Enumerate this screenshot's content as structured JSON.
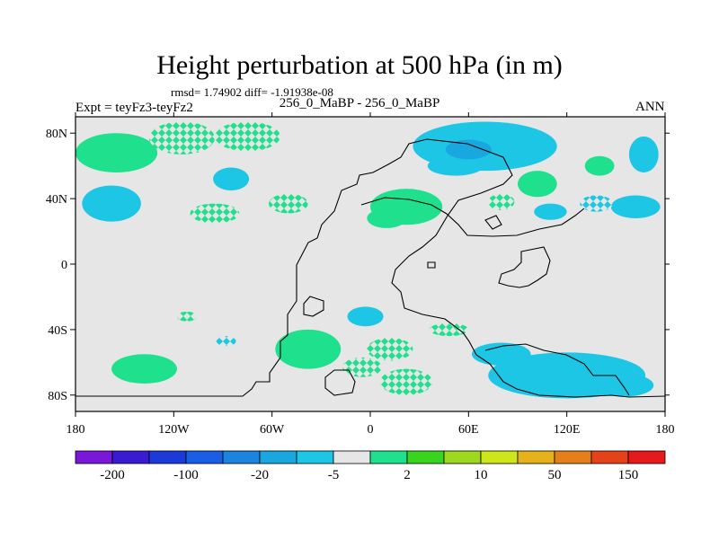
{
  "chart_data": {
    "type": "heatmap",
    "title": "Height perturbation at 500 hPa (in m)",
    "stats_text": "rmsd= 1.74902 diff= -1.91938e-08",
    "left_label": "Expt = teyFz3-teyFz2",
    "center_label": "256_0_MaBP - 256_0_MaBP",
    "right_label": "ANN",
    "x_axis": {
      "range": [
        -180,
        180
      ],
      "ticks": [
        -180,
        -120,
        -60,
        0,
        60,
        120,
        180
      ],
      "tick_labels": [
        "180",
        "120W",
        "60W",
        "0",
        "60E",
        "120E",
        "180"
      ]
    },
    "y_axis": {
      "range": [
        -90,
        90
      ],
      "ticks": [
        80,
        40,
        0,
        -40,
        -80
      ],
      "tick_labels": [
        "80N",
        "40N",
        "0",
        "40S",
        "80S"
      ]
    },
    "colorbar": {
      "colors": [
        "#7a17d9",
        "#3b1ad4",
        "#1c3ad9",
        "#1a5ee6",
        "#1a84e0",
        "#18a7df",
        "#1ec6e5",
        "#e6e6e6",
        "#1fe08c",
        "#38d41e",
        "#9ed91f",
        "#cce619",
        "#e6b21a",
        "#e67f1a",
        "#e6421a",
        "#e61a1a"
      ],
      "labels": [
        "-200",
        "-100",
        "-20",
        "-5",
        "2",
        "10",
        "50",
        "150"
      ]
    },
    "regions": [
      {
        "cls": "pos",
        "lon": -155,
        "lat": 68,
        "rx": 25,
        "ry": 12
      },
      {
        "cls": "pos",
        "lon": -150,
        "lat": 67,
        "rx": 17,
        "ry": 7
      },
      {
        "cls": "pos-hatch",
        "lon": -115,
        "lat": 77,
        "rx": 20,
        "ry": 10
      },
      {
        "cls": "pos-hatch",
        "lon": -75,
        "lat": 78,
        "rx": 20,
        "ry": 9
      },
      {
        "cls": "neg",
        "lon": -158,
        "lat": 37,
        "rx": 18,
        "ry": 11
      },
      {
        "cls": "neg",
        "lon": -85,
        "lat": 52,
        "rx": 11,
        "ry": 7
      },
      {
        "cls": "pos-hatch",
        "lon": -95,
        "lat": 31,
        "rx": 15,
        "ry": 6
      },
      {
        "cls": "pos-hatch",
        "lon": -50,
        "lat": 37,
        "rx": 12,
        "ry": 6
      },
      {
        "cls": "neg",
        "lon": 70,
        "lat": 72,
        "rx": 44,
        "ry": 15
      },
      {
        "cls": "neg",
        "lon": 52,
        "lat": 60,
        "rx": 17,
        "ry": 6
      },
      {
        "cls": "neg-dark",
        "lon": 60,
        "lat": 70,
        "rx": 14,
        "ry": 6
      },
      {
        "cls": "neg",
        "lon": 167,
        "lat": 67,
        "rx": 9,
        "ry": 11
      },
      {
        "cls": "pos",
        "lon": 140,
        "lat": 60,
        "rx": 9,
        "ry": 6
      },
      {
        "cls": "pos",
        "lon": 102,
        "lat": 49,
        "rx": 12,
        "ry": 8
      },
      {
        "cls": "pos",
        "lon": 22,
        "lat": 35,
        "rx": 22,
        "ry": 11
      },
      {
        "cls": "pos",
        "lon": 10,
        "lat": 28,
        "rx": 12,
        "ry": 6
      },
      {
        "cls": "neg",
        "lon": 110,
        "lat": 32,
        "rx": 10,
        "ry": 5
      },
      {
        "cls": "neg",
        "lon": 162,
        "lat": 35,
        "rx": 15,
        "ry": 7
      },
      {
        "cls": "neg-hatch",
        "lon": 138,
        "lat": 37,
        "rx": 10,
        "ry": 5
      },
      {
        "cls": "pos-hatch",
        "lon": 80,
        "lat": 38,
        "rx": 8,
        "ry": 5
      },
      {
        "cls": "neg",
        "lon": -3,
        "lat": -32,
        "rx": 11,
        "ry": 6
      },
      {
        "cls": "pos-hatch",
        "lon": -112,
        "lat": -32,
        "rx": 6,
        "ry": 3
      },
      {
        "cls": "neg-hatch",
        "lon": -88,
        "lat": -47,
        "rx": 6,
        "ry": 3
      },
      {
        "cls": "pos",
        "lon": -38,
        "lat": -52,
        "rx": 20,
        "ry": 12
      },
      {
        "cls": "pos-hatch",
        "lon": 12,
        "lat": -52,
        "rx": 14,
        "ry": 7
      },
      {
        "cls": "pos",
        "lon": -138,
        "lat": -64,
        "rx": 20,
        "ry": 9
      },
      {
        "cls": "pos-hatch",
        "lon": -5,
        "lat": -63,
        "rx": 12,
        "ry": 6
      },
      {
        "cls": "pos-hatch",
        "lon": 22,
        "lat": -72,
        "rx": 16,
        "ry": 8
      },
      {
        "cls": "pos-hatch",
        "lon": 48,
        "lat": -40,
        "rx": 12,
        "ry": 4
      },
      {
        "cls": "neg",
        "lon": 120,
        "lat": -68,
        "rx": 48,
        "ry": 14
      },
      {
        "cls": "neg",
        "lon": 80,
        "lat": -55,
        "rx": 18,
        "ry": 7
      },
      {
        "cls": "neg",
        "lon": 155,
        "lat": -74,
        "rx": 18,
        "ry": 7
      }
    ]
  }
}
